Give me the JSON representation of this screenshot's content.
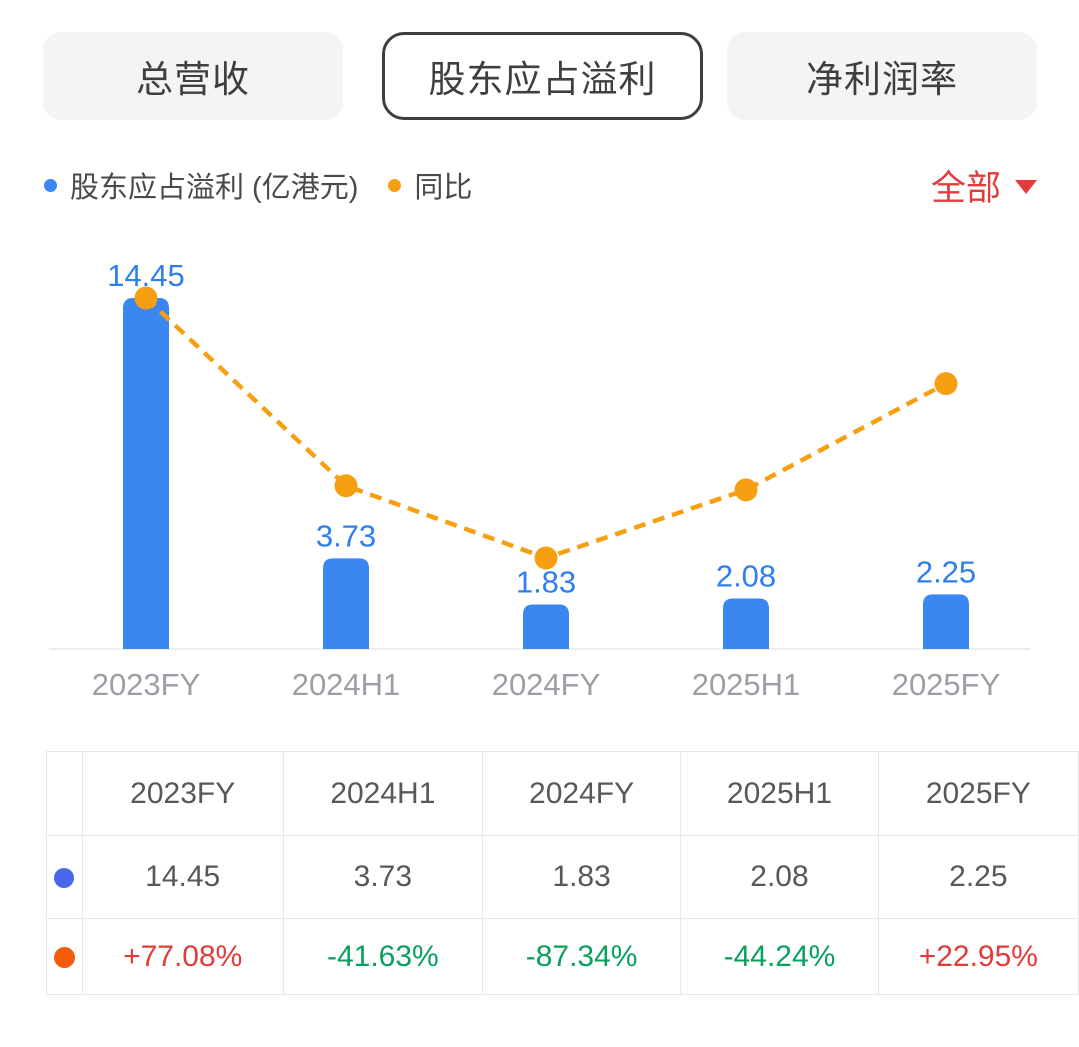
{
  "tabs": [
    {
      "label": "总营收",
      "selected": false
    },
    {
      "label": "股东应占溢利",
      "selected": true
    },
    {
      "label": "净利润率",
      "selected": false
    }
  ],
  "legend": {
    "series1_label": "股东应占溢利 (亿港元)",
    "series2_label": "同比",
    "filter_label": "全部"
  },
  "chart_data": {
    "type": "bar+line",
    "categories": [
      "2023FY",
      "2024H1",
      "2024FY",
      "2025H1",
      "2025FY"
    ],
    "series": [
      {
        "name": "股东应占溢利 (亿港元)",
        "type": "bar",
        "values": [
          14.45,
          3.73,
          1.83,
          2.08,
          2.25
        ],
        "color": "#3a87f2"
      },
      {
        "name": "同比",
        "type": "line",
        "style": "dashed",
        "unit": "%",
        "values": [
          77.08,
          -41.63,
          -87.34,
          -44.24,
          22.95
        ],
        "color": "#f6a011"
      }
    ],
    "bar_labels": [
      "14.45",
      "3.73",
      "1.83",
      "2.08",
      "2.25"
    ],
    "title": "",
    "xlabel": "",
    "ylabel": "",
    "legend_position": "top",
    "grid": false,
    "axis_line": true
  },
  "table": {
    "header": [
      "2023FY",
      "2024H1",
      "2024FY",
      "2025H1",
      "2025FY"
    ],
    "value_row": {
      "dot_color": "#4a68ee",
      "cells": [
        "14.45",
        "3.73",
        "1.83",
        "2.08",
        "2.25"
      ]
    },
    "yoy_row": {
      "dot_color": "#f45c09",
      "cells": [
        "+77.08%",
        "-41.63%",
        "-87.34%",
        "-44.24%",
        "+22.95%"
      ]
    }
  },
  "colors": {
    "bar_blue": "#3a87f2",
    "value_label_blue": "#2e7ef0",
    "line_orange": "#f6a011",
    "table_dot_blue": "#4a68ee",
    "table_dot_orange": "#f45c09",
    "up_red": "#e33b38",
    "down_green": "#0aa05e",
    "filter_red": "#e23c3c"
  }
}
